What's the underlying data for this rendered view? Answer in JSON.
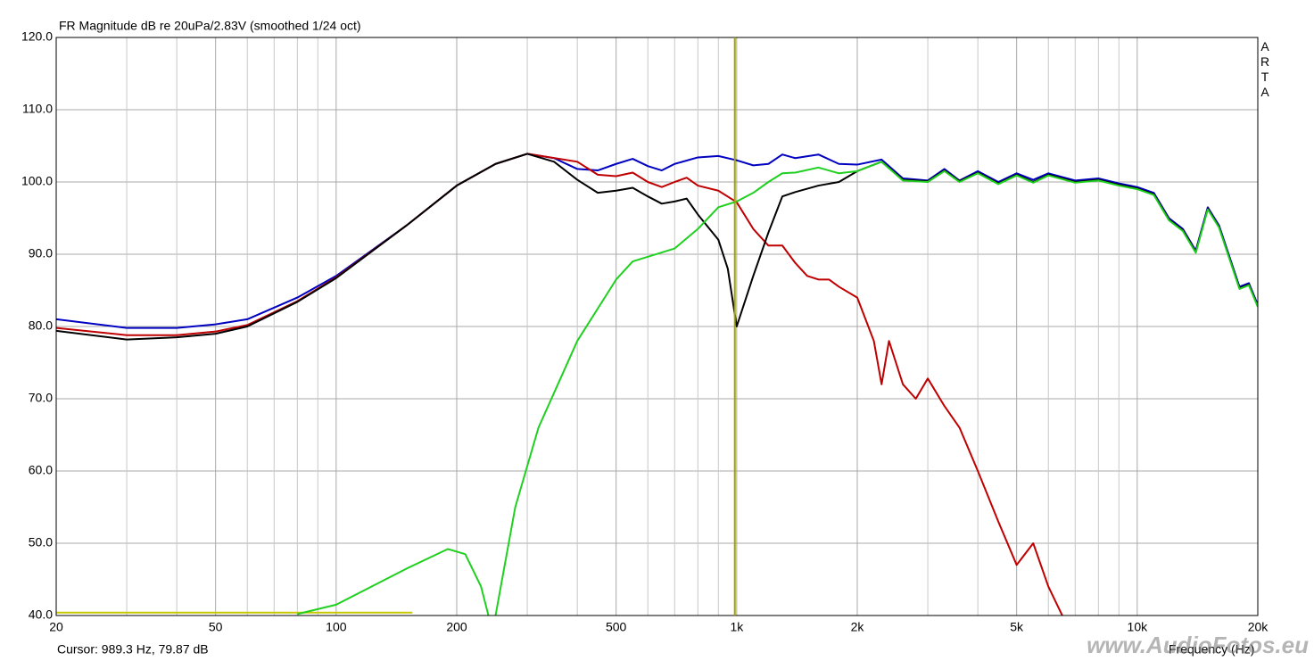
{
  "chart_data": {
    "type": "line",
    "title": "FR Magnitude dB re 20uPa/2.83V (smoothed 1/24 oct)",
    "x_label": "Frequency (Hz)",
    "side_label": "ARTA",
    "watermark": "www.AudioFotos.eu",
    "cursor_text": "Cursor: 989.3 Hz, 79.87 dB",
    "cursor_x": 989.3,
    "cursor_color": "#a0a000",
    "xscale": "log",
    "grid": true,
    "xlim": [
      20,
      20000
    ],
    "ylim": [
      40,
      120
    ],
    "xticks": [
      20,
      50,
      100,
      200,
      500,
      {
        "value": 1000,
        "label": "1k"
      },
      {
        "value": 2000,
        "label": "2k"
      },
      {
        "value": 5000,
        "label": "5k"
      },
      {
        "value": 10000,
        "label": "10k"
      },
      {
        "value": 20000,
        "label": "20k"
      }
    ],
    "xminor_ticks": [
      30,
      40,
      60,
      70,
      80,
      90,
      300,
      400,
      600,
      700,
      800,
      900,
      3000,
      4000,
      6000,
      7000,
      8000,
      9000
    ],
    "yticks": [
      {
        "value": 40,
        "label": "40.0"
      },
      {
        "value": 50,
        "label": "50.0"
      },
      {
        "value": 60,
        "label": "60.0"
      },
      {
        "value": 70,
        "label": "70.0"
      },
      {
        "value": 80,
        "label": "80.0"
      },
      {
        "value": 90,
        "label": "90.0"
      },
      {
        "value": 100,
        "label": "100.0"
      },
      {
        "value": 110,
        "label": "110.0"
      },
      {
        "value": 120,
        "label": "120.0"
      }
    ],
    "series": [
      {
        "color": "#c8c800",
        "x": [
          20,
          155
        ],
        "values": [
          40.4,
          40.4
        ]
      },
      {
        "color": "#0000c0",
        "x": [
          20,
          30,
          40,
          50,
          60,
          80,
          100,
          150,
          200,
          250,
          300,
          350,
          400,
          450,
          500,
          550,
          600,
          650,
          700,
          800,
          900,
          1000,
          1100,
          1200,
          1300,
          1400,
          1600,
          1800,
          2000,
          2300,
          2600,
          3000,
          3300,
          3600,
          4000,
          4500,
          5000,
          5500,
          6000,
          7000,
          8000,
          9000,
          10000,
          11000,
          12000,
          13000,
          14000,
          15000,
          16000,
          18000,
          19000,
          20000
        ],
        "values": [
          81,
          79.8,
          79.8,
          80.3,
          81,
          84,
          87,
          94,
          99.5,
          102.5,
          103.9,
          103.3,
          101.8,
          101.6,
          102.5,
          103.2,
          102.2,
          101.6,
          102.5,
          103.4,
          103.6,
          103,
          102.3,
          102.5,
          103.8,
          103.3,
          103.8,
          102.5,
          102.4,
          103.1,
          100.5,
          100.2,
          101.8,
          100.2,
          101.5,
          100,
          101.2,
          100.3,
          101.2,
          100.2,
          100.5,
          99.8,
          99.3,
          98.5,
          95,
          93.5,
          90.5,
          96.5,
          94,
          85.5,
          86,
          83
        ]
      },
      {
        "color": "#c00000",
        "x": [
          20,
          30,
          40,
          50,
          60,
          80,
          100,
          150,
          200,
          250,
          300,
          400,
          450,
          500,
          550,
          600,
          650,
          700,
          750,
          800,
          900,
          1000,
          1100,
          1200,
          1300,
          1400,
          1500,
          1600,
          1700,
          1800,
          2000,
          2200,
          2300,
          2400,
          2600,
          2800,
          3000,
          3300,
          3600,
          4000,
          4500,
          5000,
          5500,
          6000,
          6500
        ],
        "values": [
          79.8,
          78.8,
          78.8,
          79.3,
          80.2,
          83.5,
          86.8,
          94,
          99.5,
          102.5,
          103.9,
          102.8,
          101,
          100.8,
          101.3,
          100,
          99.3,
          100,
          100.6,
          99.5,
          98.8,
          97.2,
          93.5,
          91.2,
          91.2,
          88.8,
          87,
          86.5,
          86.5,
          85.5,
          84,
          78,
          72,
          78,
          72,
          70,
          72.8,
          69,
          66,
          60,
          53,
          47,
          50,
          44,
          40
        ]
      },
      {
        "color": "#000000",
        "x": [
          20,
          30,
          40,
          50,
          60,
          80,
          100,
          150,
          200,
          250,
          300,
          350,
          400,
          450,
          500,
          550,
          600,
          650,
          700,
          750,
          800,
          900,
          950,
          1000,
          1100,
          1200,
          1300,
          1400,
          1600,
          1800,
          2000,
          2300,
          2600,
          3000,
          3300,
          3600,
          4000,
          4500,
          5000,
          5500,
          6000,
          7000,
          8000,
          9000,
          10000,
          11000,
          12000,
          13000,
          14000,
          15000,
          16000,
          18000,
          19000,
          20000
        ],
        "values": [
          79.4,
          78.2,
          78.5,
          79,
          80,
          83.4,
          86.7,
          94,
          99.5,
          102.5,
          103.9,
          102.8,
          100.3,
          98.5,
          98.8,
          99.2,
          98,
          97,
          97.3,
          97.7,
          95.5,
          92,
          88,
          80,
          87,
          93,
          98,
          98.6,
          99.5,
          100,
          101.5,
          102.8,
          100.3,
          100.1,
          101.6,
          100.1,
          101.3,
          99.8,
          101,
          100,
          101,
          100,
          100.3,
          99.6,
          99.1,
          98.3,
          94.8,
          93.3,
          90.3,
          96.3,
          93.8,
          85.3,
          85.8,
          82.8
        ]
      },
      {
        "color": "#20d020",
        "x": [
          80,
          100,
          150,
          190,
          210,
          230,
          240,
          245,
          250,
          280,
          320,
          400,
          500,
          550,
          700,
          800,
          900,
          1000,
          1100,
          1200,
          1300,
          1400,
          1600,
          1800,
          2000,
          2300,
          2600,
          3000,
          3300,
          3600,
          4000,
          4500,
          5000,
          5500,
          6000,
          7000,
          8000,
          9000,
          10000,
          11000,
          12000,
          13000,
          14000,
          15000,
          16000,
          18000,
          19000,
          20000
        ],
        "values": [
          40.2,
          41.5,
          46.5,
          49.2,
          48.5,
          44,
          40,
          null,
          40,
          55,
          66,
          78,
          86.5,
          89,
          90.8,
          93.5,
          96.5,
          97.3,
          98.5,
          100,
          101.2,
          101.3,
          102,
          101.2,
          101.5,
          102.8,
          100.2,
          100,
          101.5,
          100,
          101.2,
          99.7,
          100.9,
          99.9,
          100.9,
          99.9,
          100.2,
          99.5,
          99,
          98.2,
          94.7,
          93.2,
          90.2,
          96.2,
          93.7,
          85.2,
          85.7,
          82.7
        ]
      }
    ]
  }
}
